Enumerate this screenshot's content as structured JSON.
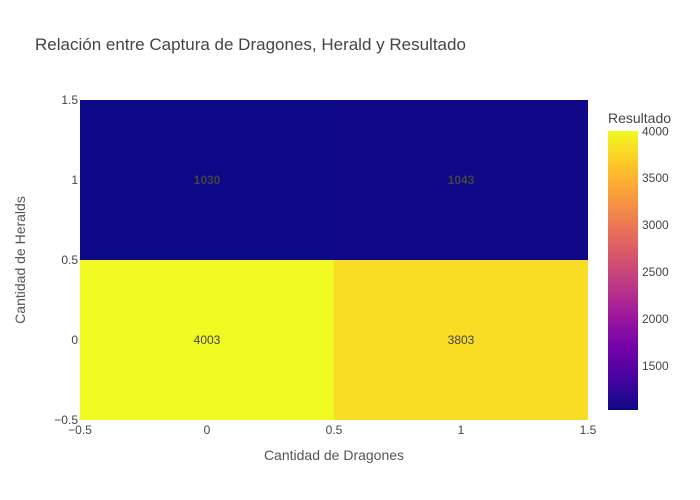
{
  "chart_data": {
    "type": "heatmap",
    "title": "Relación entre Captura de Dragones, Herald y Resultado",
    "xlabel": "Cantidad de Dragones",
    "ylabel": "Cantidad de Heralds",
    "x": [
      0,
      1
    ],
    "y": [
      0,
      1
    ],
    "x_tick_labels": [
      "−0.5",
      "0",
      "0.5",
      "1",
      "1.5"
    ],
    "y_tick_labels": [
      "1.5",
      "1",
      "0.5",
      "0",
      "−0.5"
    ],
    "xlim": [
      -0.5,
      1.5
    ],
    "ylim": [
      -0.5,
      1.5
    ],
    "z": [
      [
        4003,
        3803
      ],
      [
        1030,
        1043
      ]
    ],
    "colorscale": "plasma",
    "colorbar": {
      "title": "Resultado",
      "ticks": [
        "4000",
        "3500",
        "3000",
        "2500",
        "2000",
        "1500"
      ],
      "range": [
        1030,
        4003
      ]
    },
    "grid": false,
    "legend": "none"
  }
}
